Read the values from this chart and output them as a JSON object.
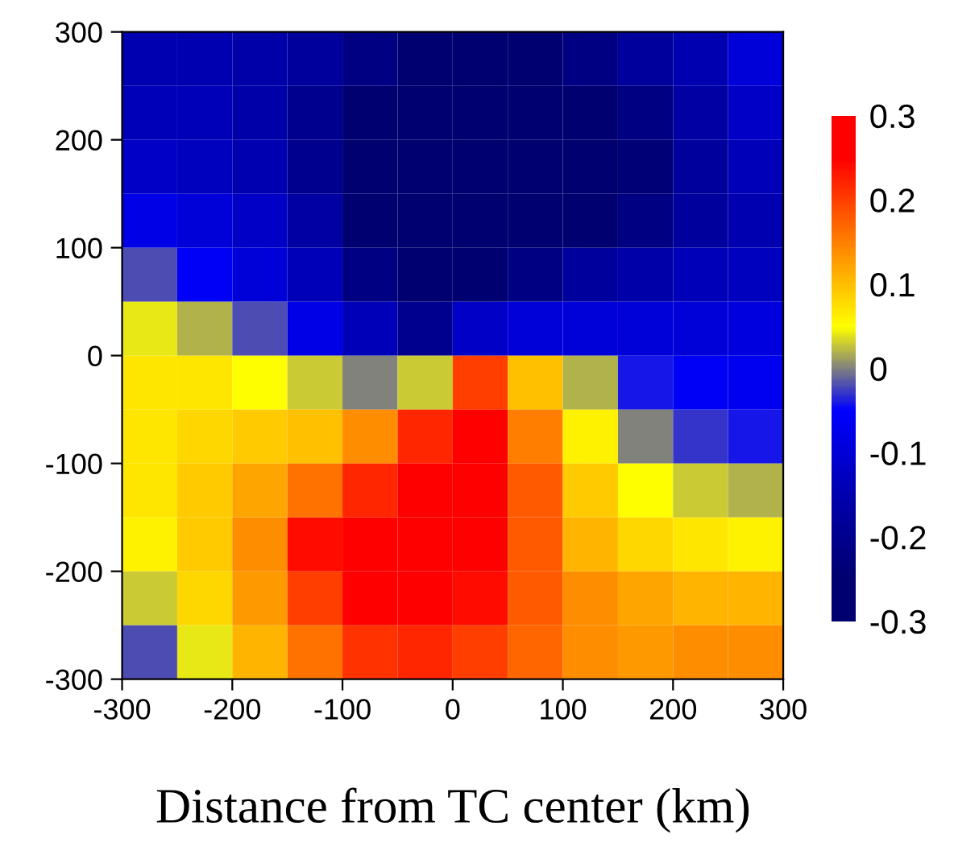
{
  "chart_data": {
    "type": "heatmap",
    "xlabel": "Distance from TC center (km)",
    "xlim": [
      -300,
      300
    ],
    "ylim": [
      -300,
      300
    ],
    "xticks": [
      -300,
      -200,
      -100,
      0,
      100,
      200,
      300
    ],
    "yticks": [
      -300,
      -200,
      -100,
      0,
      100,
      200,
      300
    ],
    "clim": [
      -0.3,
      0.3
    ],
    "cticks": [
      -0.3,
      -0.2,
      -0.1,
      0,
      0.1,
      0.2,
      0.3
    ],
    "colors": [
      "#000070",
      "#0000b0",
      "#0000ff",
      "#ffff00",
      "#ff8000",
      "#ff0000"
    ],
    "cells": [
      [
        -0.15,
        -0.15,
        -0.16,
        -0.18,
        -0.22,
        -0.25,
        -0.26,
        -0.25,
        -0.22,
        -0.18,
        -0.15,
        -0.1
      ],
      [
        -0.14,
        -0.14,
        -0.16,
        -0.2,
        -0.25,
        -0.28,
        -0.3,
        -0.3,
        -0.27,
        -0.22,
        -0.17,
        -0.12
      ],
      [
        -0.12,
        -0.13,
        -0.15,
        -0.2,
        -0.26,
        -0.3,
        -0.3,
        -0.3,
        -0.28,
        -0.24,
        -0.18,
        -0.14
      ],
      [
        -0.08,
        -0.1,
        -0.12,
        -0.17,
        -0.25,
        -0.3,
        -0.3,
        -0.28,
        -0.25,
        -0.22,
        -0.18,
        -0.15
      ],
      [
        -0.02,
        -0.06,
        -0.1,
        -0.14,
        -0.22,
        -0.29,
        -0.27,
        -0.22,
        -0.18,
        -0.16,
        -0.14,
        -0.13
      ],
      [
        0.04,
        0.02,
        -0.02,
        -0.08,
        -0.14,
        -0.2,
        -0.12,
        -0.1,
        -0.1,
        -0.1,
        -0.1,
        -0.09
      ],
      [
        0.07,
        0.07,
        0.05,
        0.03,
        0.0,
        0.03,
        0.2,
        0.1,
        0.02,
        -0.04,
        -0.06,
        -0.07
      ],
      [
        0.07,
        0.08,
        0.09,
        0.1,
        0.14,
        0.22,
        0.25,
        0.15,
        0.06,
        0.0,
        -0.03,
        -0.04
      ],
      [
        0.07,
        0.09,
        0.12,
        0.16,
        0.22,
        0.26,
        0.26,
        0.18,
        0.09,
        0.05,
        0.03,
        0.02
      ],
      [
        0.06,
        0.09,
        0.14,
        0.24,
        0.27,
        0.28,
        0.26,
        0.18,
        0.11,
        0.08,
        0.07,
        0.06
      ],
      [
        0.03,
        0.08,
        0.13,
        0.2,
        0.26,
        0.27,
        0.24,
        0.18,
        0.14,
        0.12,
        0.11,
        0.11
      ],
      [
        -0.02,
        0.04,
        0.11,
        0.16,
        0.21,
        0.22,
        0.2,
        0.17,
        0.14,
        0.13,
        0.14,
        0.14
      ]
    ]
  }
}
